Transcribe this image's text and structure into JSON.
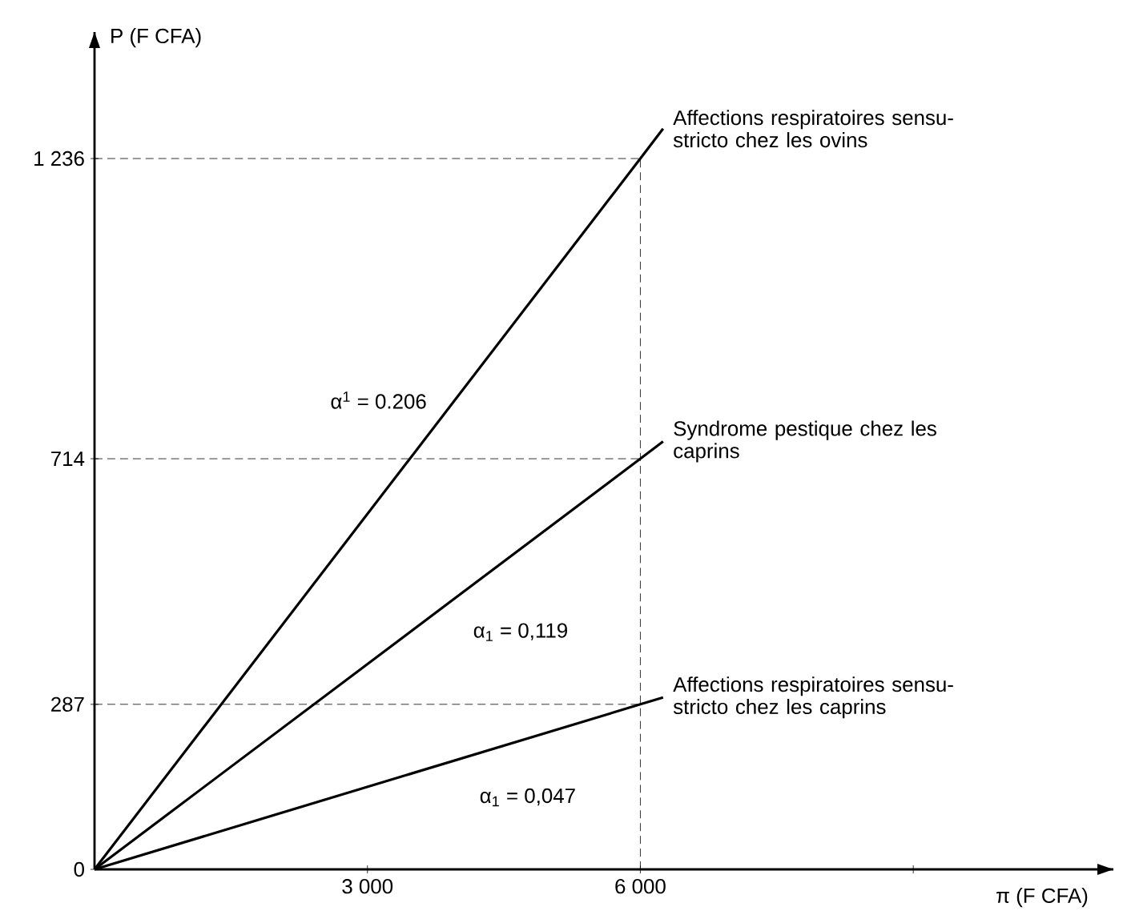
{
  "chart_data": {
    "type": "line",
    "xlabel": "π (F CFA)",
    "ylabel": "P (F CFA)",
    "xlim": [
      0,
      11200
    ],
    "ylim": [
      0,
      1456
    ],
    "xticks": [
      {
        "value": 3000,
        "label": "3 000"
      },
      {
        "value": 6000,
        "label": "6 000"
      },
      {
        "value": 9000,
        "label": null
      }
    ],
    "yticks": [
      0,
      287,
      714,
      {
        "value": 1236,
        "label": "1 236"
      }
    ],
    "series": [
      {
        "name": "Affections respiratoires sensu-stricto chez les ovins",
        "color": "#000000",
        "x": [
          0,
          6000,
          6250
        ],
        "values": [
          0,
          1236,
          1288
        ]
      },
      {
        "name": "Syndrome pestique chez les caprins",
        "color": "#000000",
        "x": [
          0,
          6000,
          6250
        ],
        "values": [
          0,
          714,
          744
        ]
      },
      {
        "name": "Affections respiratoires sensu-stricto chez les caprins",
        "color": "#000000",
        "x": [
          0,
          6000,
          6250
        ],
        "values": [
          0,
          287,
          299
        ]
      }
    ],
    "ref_lines": [
      {
        "axis": "y",
        "value": 1236,
        "color": "#000000",
        "line_style": "dashed"
      },
      {
        "axis": "y",
        "value": 714,
        "color": "#000000",
        "line_style": "dashed"
      },
      {
        "axis": "y",
        "value": 287,
        "color": "#000000",
        "line_style": "dashed"
      },
      {
        "axis": "x",
        "value": 6000,
        "color": "#000000",
        "line_style": "dashed"
      }
    ],
    "annotations": [
      "α$^{1}$ = 0.206",
      "α$_{1}$ = 0,119",
      "α$_{1}$ = 0,047"
    ]
  }
}
